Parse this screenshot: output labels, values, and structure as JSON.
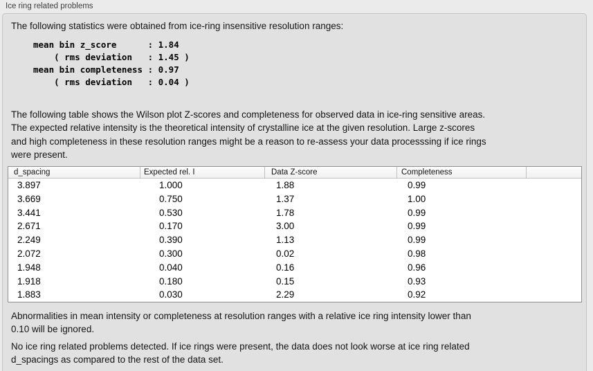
{
  "panel": {
    "title": "Ice ring related problems"
  },
  "intro": "The following statistics were obtained from ice-ring insensitive resolution ranges:",
  "stats_block": "mean bin z_score      : 1.84\n    ( rms deviation   : 1.45 )\nmean bin completeness : 0.97\n    ( rms deviation   : 0.04 )",
  "description_lines": [
    "The following table shows the Wilson plot Z-scores and completeness for observed data in ice-ring sensitive areas.",
    "The expected relative intensity is the theoretical intensity of crystalline ice at the given resolution. Large z-scores",
    "and high completeness in these resolution ranges might be a reason to re-assess your data processsing if ice rings",
    "were present."
  ],
  "table": {
    "columns": [
      "d_spacing",
      "Expected rel. I",
      "Data Z-score",
      "Completeness",
      ""
    ],
    "rows": [
      [
        "3.897",
        "1.000",
        "1.88",
        "0.99"
      ],
      [
        "3.669",
        "0.750",
        "1.37",
        "1.00"
      ],
      [
        "3.441",
        "0.530",
        "1.78",
        "0.99"
      ],
      [
        "2.671",
        "0.170",
        "3.00",
        "0.99"
      ],
      [
        "2.249",
        "0.390",
        "1.13",
        "0.99"
      ],
      [
        "2.072",
        "0.300",
        "0.02",
        "0.98"
      ],
      [
        "1.948",
        "0.040",
        "0.16",
        "0.96"
      ],
      [
        "1.918",
        "0.180",
        "0.15",
        "0.93"
      ],
      [
        "1.883",
        "0.030",
        "2.29",
        "0.92"
      ]
    ]
  },
  "notes": {
    "ignore_lines": [
      "Abnormalities in mean intensity or completeness at resolution ranges with a relative ice ring intensity lower than",
      "0.10 will be ignored."
    ],
    "result_lines": [
      "No ice ring related problems detected. If ice rings were present, the data does not look worse at ice ring related",
      "d_spacings as compared to the rest of the data set."
    ]
  },
  "colors": {
    "page_bg": "#ebebeb",
    "panel_bg": "#e1e1e1",
    "table_border": "#8f8f8f",
    "header_bg": "#f6f6f6"
  }
}
